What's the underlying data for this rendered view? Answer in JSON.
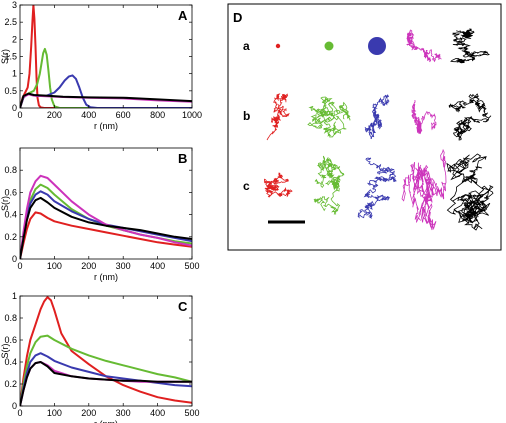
{
  "chart_data": [
    {
      "type": "line",
      "panel_label": "A",
      "xlabel": "r (nm)",
      "ylabel": "S(r)",
      "xlim": [
        0,
        1000
      ],
      "ylim": [
        0,
        3
      ],
      "xticks": [
        0,
        200,
        400,
        600,
        800,
        1000
      ],
      "yticks": [
        0,
        0.5,
        1,
        1.5,
        2,
        2.5,
        3
      ],
      "ytick_labels": [
        "0",
        "0.5",
        "1",
        "1.5",
        "2",
        "2.5",
        "3"
      ],
      "series": [
        {
          "color": "#e02020",
          "x": [
            0,
            15,
            30,
            45,
            55,
            65,
            72,
            78,
            84,
            90,
            96,
            102,
            110,
            120,
            140,
            200,
            1000
          ],
          "y": [
            0,
            0.3,
            0.45,
            0.6,
            1.0,
            1.8,
            2.5,
            3.0,
            2.6,
            1.8,
            0.9,
            0.3,
            0.08,
            0.02,
            0.0,
            0.0,
            0.0
          ]
        },
        {
          "color": "#66bb33",
          "x": [
            0,
            20,
            40,
            60,
            80,
            100,
            115,
            125,
            135,
            145,
            155,
            165,
            175,
            185,
            200,
            230,
            1000
          ],
          "y": [
            0,
            0.3,
            0.4,
            0.45,
            0.5,
            0.7,
            1.0,
            1.3,
            1.6,
            1.72,
            1.55,
            1.1,
            0.6,
            0.25,
            0.05,
            0.0,
            0.0
          ]
        },
        {
          "color": "#3a3aaf",
          "x": [
            0,
            20,
            40,
            60,
            100,
            150,
            200,
            230,
            260,
            285,
            305,
            325,
            345,
            365,
            385,
            410,
            450,
            1000
          ],
          "y": [
            0,
            0.3,
            0.4,
            0.4,
            0.35,
            0.35,
            0.45,
            0.6,
            0.8,
            0.92,
            0.95,
            0.85,
            0.6,
            0.3,
            0.1,
            0.02,
            0.0,
            0.0
          ]
        },
        {
          "color": "#cc33bb",
          "x": [
            0,
            20,
            50,
            80,
            150,
            250,
            400,
            600,
            800,
            1000
          ],
          "y": [
            0,
            0.32,
            0.4,
            0.36,
            0.34,
            0.32,
            0.3,
            0.28,
            0.22,
            0.18
          ]
        },
        {
          "color": "#000000",
          "x": [
            0,
            20,
            50,
            80,
            150,
            250,
            400,
            600,
            800,
            1000
          ],
          "y": [
            0,
            0.35,
            0.42,
            0.38,
            0.36,
            0.33,
            0.31,
            0.3,
            0.25,
            0.2
          ]
        }
      ]
    },
    {
      "type": "line",
      "panel_label": "B",
      "xlabel": "r (nm)",
      "ylabel": "S(r)",
      "xlim": [
        0,
        500
      ],
      "ylim": [
        0,
        1
      ],
      "xticks": [
        0,
        100,
        200,
        300,
        400,
        500
      ],
      "yticks": [
        0,
        0.2,
        0.4,
        0.6,
        0.8
      ],
      "ytick_labels": [
        "0",
        "0.2",
        "0.4",
        "0.6",
        "0.8"
      ],
      "series": [
        {
          "color": "#e02020",
          "x": [
            0,
            10,
            20,
            30,
            45,
            60,
            80,
            100,
            150,
            200,
            250,
            300,
            350,
            400,
            450,
            500
          ],
          "y": [
            0,
            0.14,
            0.27,
            0.36,
            0.42,
            0.41,
            0.37,
            0.34,
            0.3,
            0.27,
            0.24,
            0.21,
            0.18,
            0.15,
            0.13,
            0.11
          ]
        },
        {
          "color": "#66bb33",
          "x": [
            0,
            10,
            20,
            30,
            45,
            60,
            80,
            100,
            150,
            200,
            250,
            300,
            350,
            400,
            450,
            500
          ],
          "y": [
            0,
            0.22,
            0.4,
            0.53,
            0.63,
            0.67,
            0.64,
            0.58,
            0.45,
            0.36,
            0.3,
            0.26,
            0.22,
            0.19,
            0.16,
            0.14
          ]
        },
        {
          "color": "#3a3aaf",
          "x": [
            0,
            10,
            20,
            30,
            45,
            60,
            80,
            100,
            150,
            200,
            250,
            300,
            350,
            400,
            450,
            500
          ],
          "y": [
            0,
            0.2,
            0.38,
            0.5,
            0.58,
            0.61,
            0.58,
            0.52,
            0.43,
            0.36,
            0.31,
            0.28,
            0.25,
            0.22,
            0.19,
            0.16
          ]
        },
        {
          "color": "#cc33bb",
          "x": [
            0,
            10,
            20,
            30,
            45,
            60,
            80,
            100,
            150,
            200,
            250,
            300,
            350,
            400,
            450,
            500
          ],
          "y": [
            0,
            0.24,
            0.45,
            0.6,
            0.7,
            0.75,
            0.73,
            0.67,
            0.52,
            0.4,
            0.31,
            0.26,
            0.22,
            0.19,
            0.15,
            0.12
          ]
        },
        {
          "color": "#000000",
          "x": [
            0,
            10,
            20,
            30,
            45,
            60,
            80,
            100,
            150,
            200,
            250,
            300,
            350,
            400,
            450,
            500
          ],
          "y": [
            0,
            0.18,
            0.35,
            0.46,
            0.53,
            0.55,
            0.51,
            0.46,
            0.38,
            0.33,
            0.3,
            0.28,
            0.26,
            0.23,
            0.2,
            0.18
          ]
        }
      ]
    },
    {
      "type": "line",
      "panel_label": "C",
      "xlabel": "r (nm)",
      "ylabel": "S(r)",
      "xlim": [
        0,
        500
      ],
      "ylim": [
        0,
        1
      ],
      "xticks": [
        0,
        100,
        200,
        300,
        400,
        500
      ],
      "yticks": [
        0,
        0.2,
        0.4,
        0.6,
        0.8,
        1
      ],
      "ytick_labels": [
        "0",
        "0.2",
        "0.4",
        "0.6",
        "0.8",
        "1"
      ],
      "series": [
        {
          "color": "#e02020",
          "x": [
            0,
            10,
            20,
            30,
            45,
            60,
            70,
            80,
            90,
            100,
            120,
            150,
            200,
            250,
            300,
            350,
            400,
            450,
            500
          ],
          "y": [
            0,
            0.25,
            0.45,
            0.6,
            0.74,
            0.88,
            0.95,
            0.99,
            0.96,
            0.87,
            0.66,
            0.5,
            0.38,
            0.27,
            0.19,
            0.13,
            0.08,
            0.05,
            0.03
          ]
        },
        {
          "color": "#66bb33",
          "x": [
            0,
            10,
            20,
            30,
            45,
            60,
            80,
            100,
            150,
            200,
            250,
            300,
            350,
            400,
            450,
            500
          ],
          "y": [
            0,
            0.2,
            0.36,
            0.48,
            0.58,
            0.63,
            0.64,
            0.6,
            0.52,
            0.46,
            0.41,
            0.37,
            0.33,
            0.29,
            0.26,
            0.22
          ]
        },
        {
          "color": "#3a3aaf",
          "x": [
            0,
            10,
            20,
            30,
            45,
            60,
            80,
            100,
            150,
            200,
            250,
            300,
            350,
            400,
            450,
            500
          ],
          "y": [
            0,
            0.16,
            0.3,
            0.4,
            0.46,
            0.48,
            0.45,
            0.41,
            0.35,
            0.31,
            0.27,
            0.25,
            0.23,
            0.21,
            0.19,
            0.18
          ]
        },
        {
          "color": "#cc33bb",
          "x": [
            0,
            10,
            20,
            30,
            45,
            60,
            80,
            100,
            150,
            200,
            250,
            300,
            350,
            400,
            450,
            500
          ],
          "y": [
            0,
            0.14,
            0.26,
            0.34,
            0.39,
            0.4,
            0.37,
            0.32,
            0.27,
            0.25,
            0.24,
            0.23,
            0.22,
            0.22,
            0.22,
            0.22
          ]
        },
        {
          "color": "#000000",
          "x": [
            0,
            10,
            20,
            30,
            45,
            60,
            80,
            100,
            150,
            200,
            250,
            300,
            350,
            400,
            450,
            500
          ],
          "y": [
            0,
            0.14,
            0.26,
            0.34,
            0.39,
            0.4,
            0.36,
            0.3,
            0.27,
            0.25,
            0.24,
            0.23,
            0.23,
            0.22,
            0.22,
            0.22
          ]
        }
      ]
    }
  ],
  "panel_d": {
    "label": "D",
    "rows": [
      "a",
      "b",
      "c"
    ],
    "colors": [
      "#e02020",
      "#66bb33",
      "#3a3aaf",
      "#cc33bb",
      "#000000"
    ],
    "row_a_blob_sizes": [
      2.2,
      4.5,
      9
    ]
  }
}
